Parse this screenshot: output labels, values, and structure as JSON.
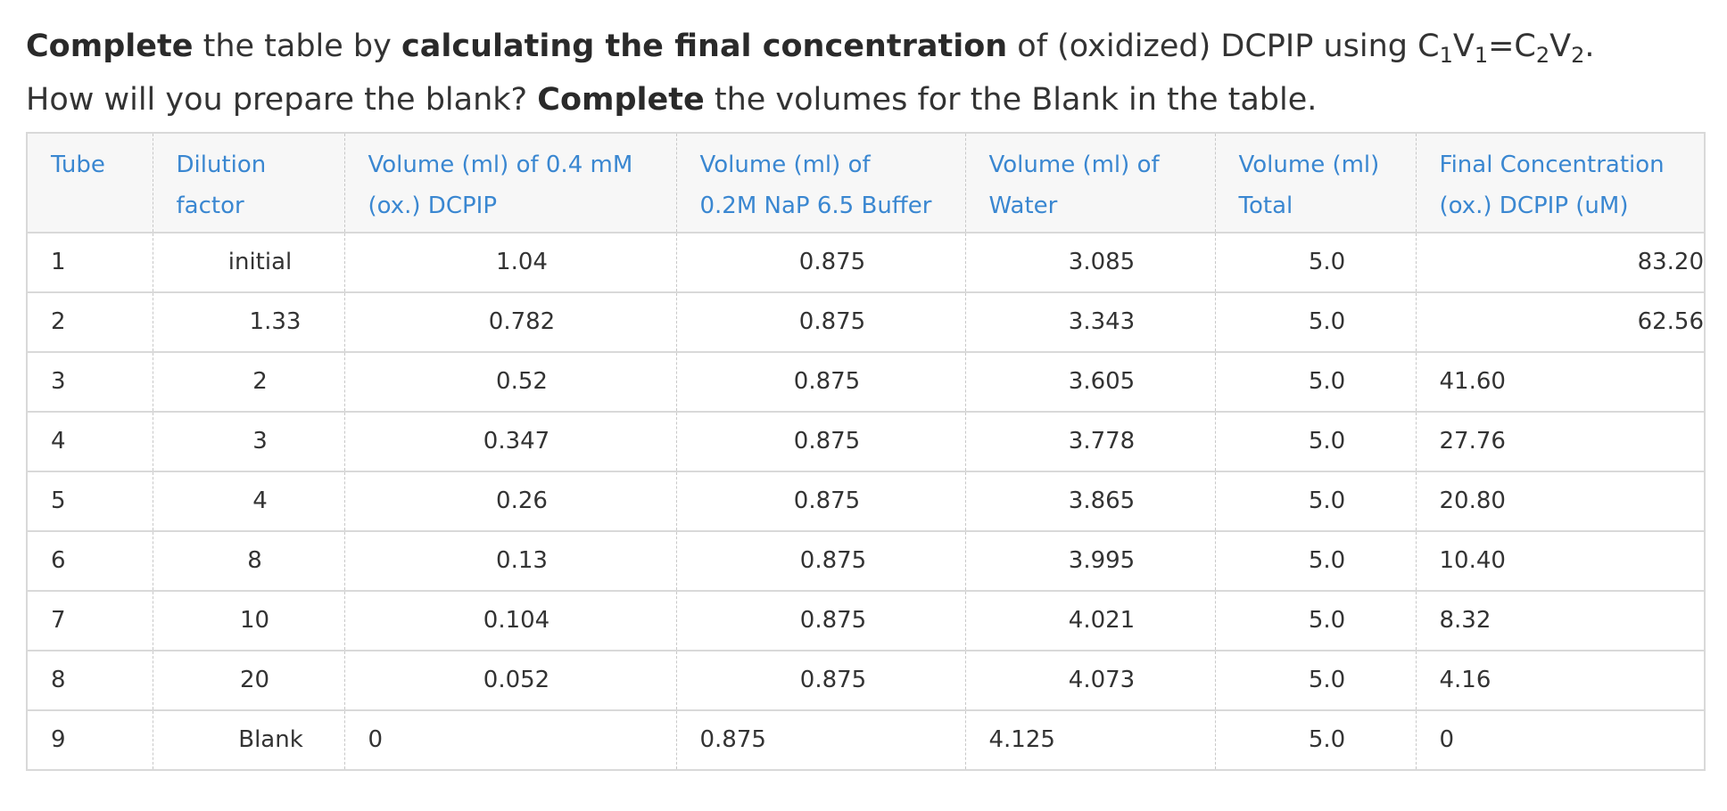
{
  "instructions": {
    "line1": {
      "b1": "Complete",
      "t1": " the table by ",
      "b2": "calculating the final concentration",
      "t2": " of (oxidized) DCPIP using C",
      "s1": "1",
      "t3": "V",
      "s2": "1",
      "t4": "=C",
      "s3": "2",
      "t5": "V",
      "s4": "2",
      "t6": "."
    },
    "line2": {
      "t1": "How will you prepare the blank? ",
      "b1": "Complete",
      "t2": " the volumes for the Blank in the table."
    }
  },
  "table": {
    "headers": [
      [
        "Tube",
        ""
      ],
      [
        "Dilution",
        "factor"
      ],
      [
        "Volume (ml) of 0.4 mM",
        "(ox.) DCPIP"
      ],
      [
        "Volume (ml) of",
        "0.2M NaP 6.5 Buffer"
      ],
      [
        "Volume (ml) of",
        "Water"
      ],
      [
        "Volume (ml)",
        "Total"
      ],
      [
        "Final Concentration",
        "(ox.) DCPIP (uM)"
      ]
    ],
    "rows": [
      [
        "1",
        "initial",
        "1.04",
        "0.875",
        "3.085",
        "5.0",
        "83.20"
      ],
      [
        "2",
        "1.33",
        "0.782",
        "0.875",
        "3.343",
        "5.0",
        "62.56"
      ],
      [
        "3",
        "2",
        "0.52",
        "0.875",
        "3.605",
        "5.0",
        "41.60"
      ],
      [
        "4",
        "3",
        "0.347",
        "0.875",
        "3.778",
        "5.0",
        "27.76"
      ],
      [
        "5",
        "4",
        "0.26",
        "0.875",
        "3.865",
        "5.0",
        "20.80"
      ],
      [
        "6",
        "8",
        "0.13",
        "0.875",
        "3.995",
        "5.0",
        "10.40"
      ],
      [
        "7",
        "10",
        "0.104",
        "0.875",
        "4.021",
        "5.0",
        "8.32"
      ],
      [
        "8",
        "20",
        "0.052",
        "0.875",
        "4.073",
        "5.0",
        "4.16"
      ],
      [
        "9",
        "Blank",
        "0",
        "0.875",
        "4.125",
        "5.0",
        "0"
      ]
    ]
  },
  "colors": {
    "header_text": "#3a87d1",
    "header_bg": "#f7f7f7",
    "body_text": "#333333",
    "border": "#d9d9d9"
  }
}
